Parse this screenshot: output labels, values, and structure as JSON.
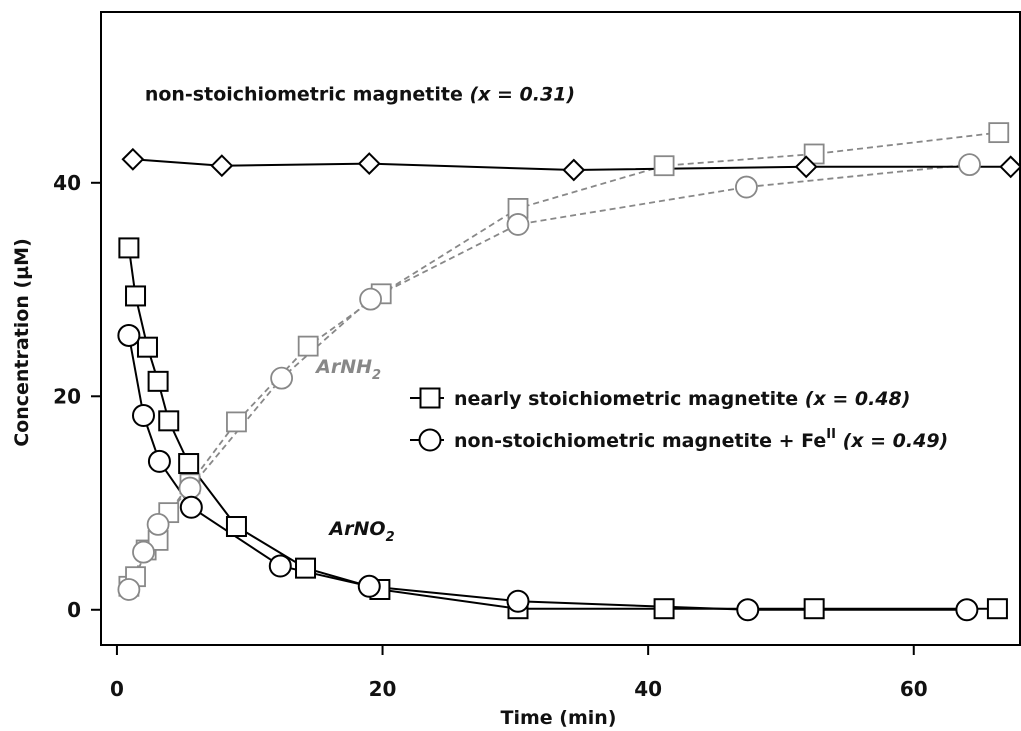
{
  "chart_data": {
    "type": "line",
    "title": "",
    "xlabel": "Time (min)",
    "ylabel": "Concentration (µM)",
    "xlim": [
      -1.2,
      68
    ],
    "ylim": [
      -3.3,
      56
    ],
    "x_ticks": [
      0,
      20,
      40,
      60
    ],
    "y_ticks": [
      0,
      20,
      40
    ],
    "grid": false,
    "legend_position": "center-right",
    "series": [
      {
        "name": "nearly stoichiometric magnetite (x = 0.48)",
        "marker": "square",
        "line_style": "solid",
        "color": "#000000",
        "x": [
          0.9,
          1.4,
          2.3,
          3.1,
          3.9,
          5.4,
          9.0,
          14.2,
          19.8,
          30.2,
          41.2,
          52.5,
          66.3
        ],
        "y": [
          33.9,
          29.4,
          24.6,
          21.4,
          17.7,
          13.7,
          7.8,
          3.9,
          1.9,
          0.1,
          0.1,
          0.1,
          0.1
        ]
      },
      {
        "name": "non-stoichiometric magnetite + Fe",
        "name_sup": "II",
        "name_suffix": "(x = 0.49)",
        "marker": "circle",
        "line_style": "solid",
        "color": "#000000",
        "x": [
          0.9,
          2.0,
          3.2,
          5.6,
          12.3,
          19.0,
          30.2,
          47.5,
          64.0
        ],
        "y": [
          25.7,
          18.2,
          13.9,
          9.6,
          4.1,
          2.2,
          0.8,
          0.0,
          0.0
        ]
      },
      {
        "name": "non-stoichiometric magnetite",
        "name_suffix": "(x = 0.31)",
        "marker": "diamond",
        "line_style": "solid",
        "color": "#000000",
        "x": [
          1.2,
          7.9,
          19.0,
          34.4,
          51.9,
          67.3
        ],
        "y": [
          42.2,
          41.6,
          41.8,
          41.2,
          41.5,
          41.5
        ]
      },
      {
        "name": "ArNH2 (square)",
        "marker": "square",
        "line_style": "dashed",
        "color": "#888888",
        "x": [
          0.9,
          1.4,
          2.2,
          3.1,
          3.9,
          5.5,
          9.0,
          14.4,
          19.9,
          30.2,
          41.2,
          52.5,
          66.4
        ],
        "y": [
          2.2,
          3.1,
          5.6,
          6.5,
          9.1,
          11.8,
          17.6,
          24.7,
          29.6,
          37.6,
          41.6,
          42.7,
          44.7
        ]
      },
      {
        "name": "ArNH2 (circle)",
        "marker": "circle",
        "line_style": "dashed",
        "color": "#888888",
        "x": [
          0.9,
          2.0,
          3.1,
          5.5,
          12.4,
          19.1,
          30.2,
          47.4,
          64.2
        ],
        "y": [
          1.9,
          5.4,
          8.0,
          11.4,
          21.7,
          29.1,
          36.1,
          39.6,
          41.7
        ]
      }
    ],
    "annotations": [
      {
        "id": "arnh2",
        "text": "ArNH",
        "sub": "2",
        "x": 15.0,
        "y": 22.2,
        "color": "#888888"
      },
      {
        "id": "arno2",
        "text": "ArNO",
        "sub": "2",
        "x": 16.0,
        "y": 7.0,
        "color": "#111111"
      },
      {
        "id": "nonstoich",
        "text": "non-stoichiometric magnetite",
        "italic_suffix": "(x = 0.31)",
        "x": 2.1,
        "y": 47.7,
        "color": "#111111"
      }
    ]
  }
}
